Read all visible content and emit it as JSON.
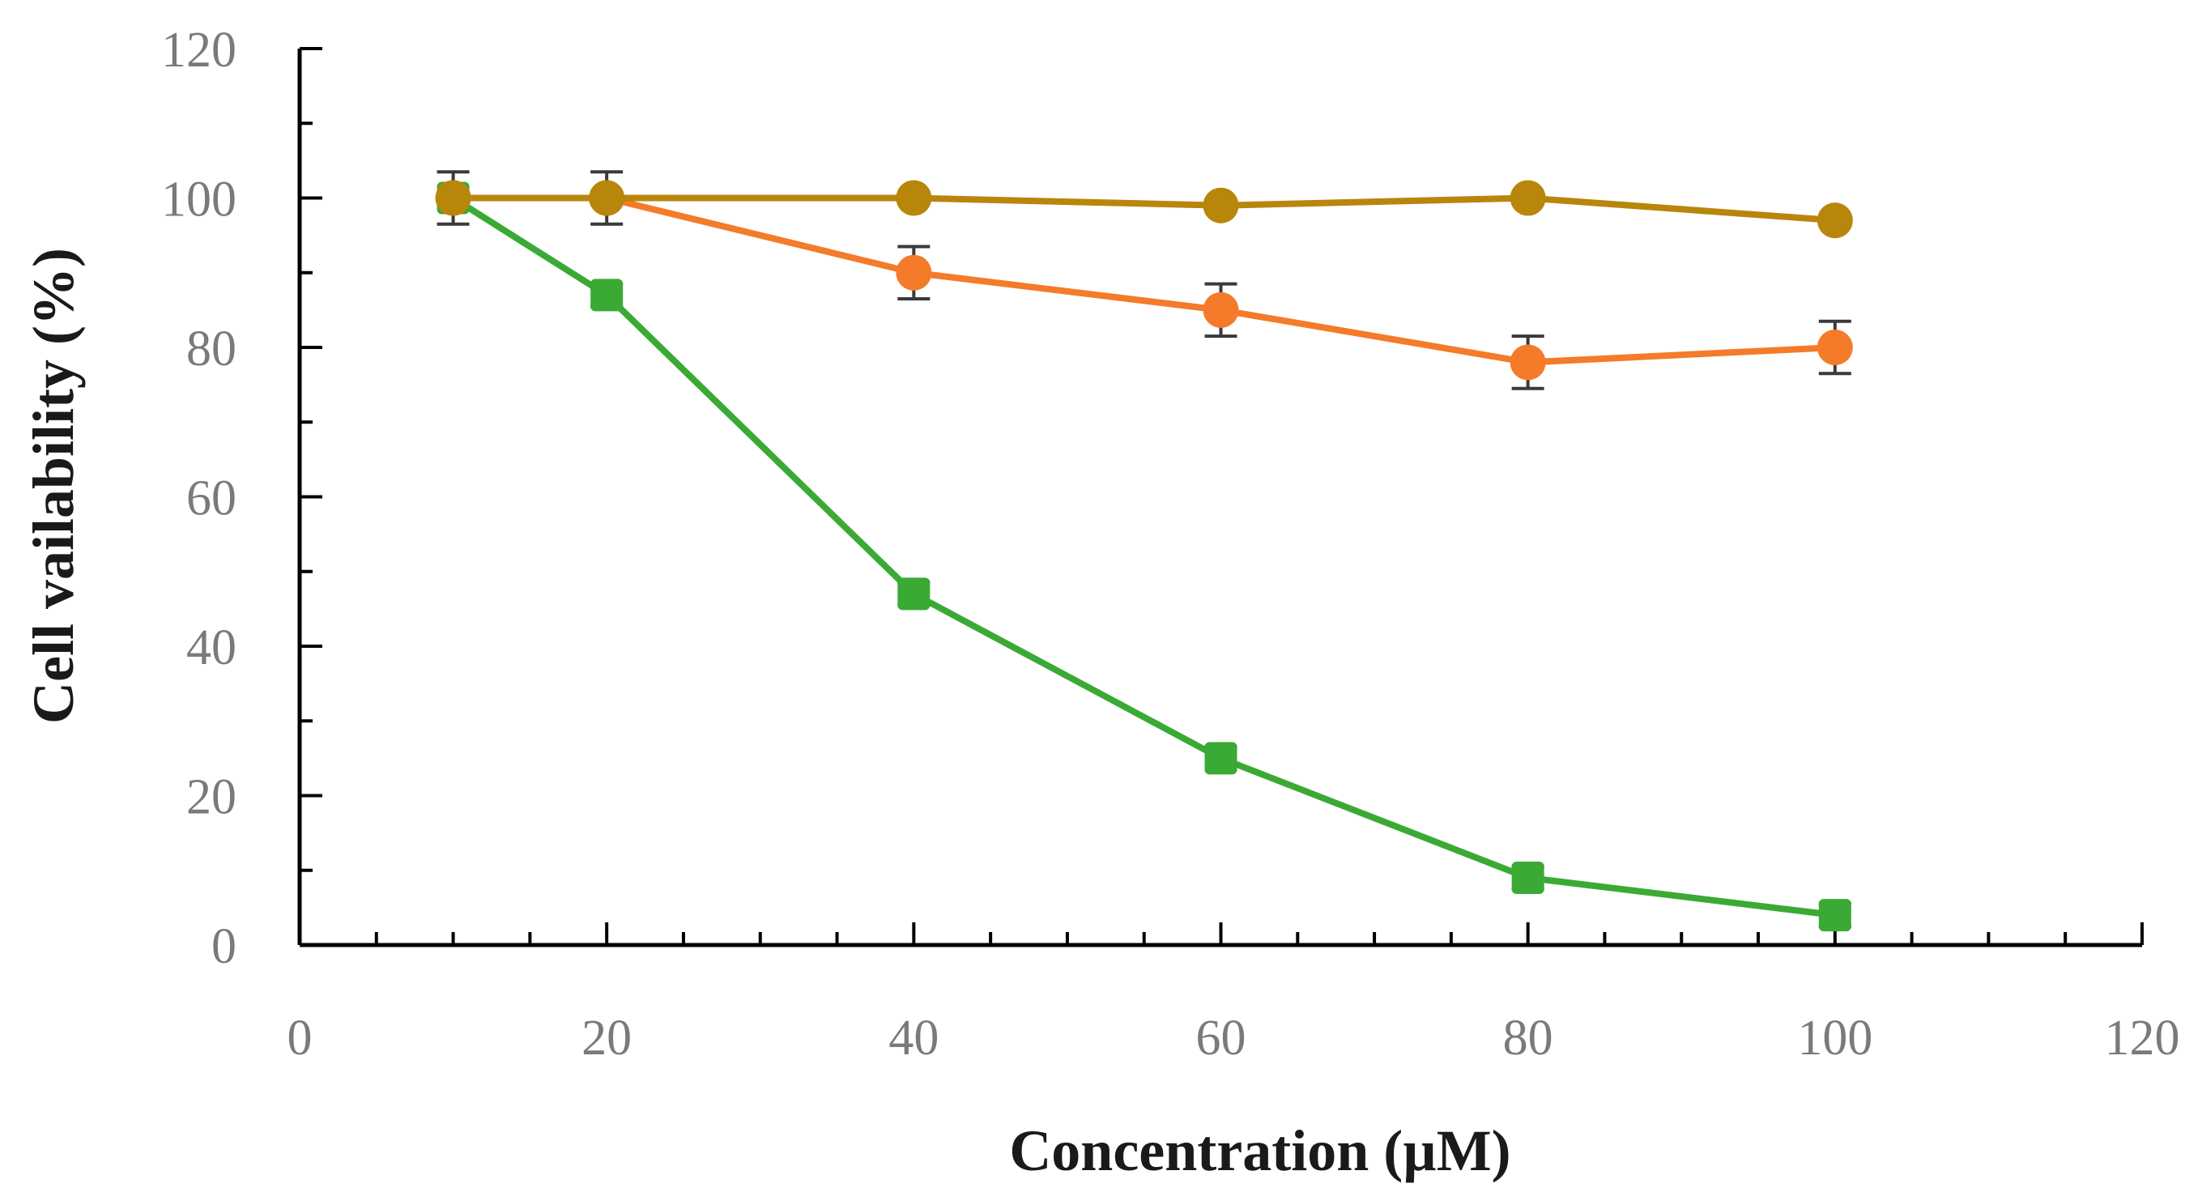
{
  "chart_data": {
    "type": "line",
    "title": "",
    "xlabel": "Concentration (µM)",
    "ylabel": "Cell  vailability (%)",
    "xlim": [
      0,
      120
    ],
    "ylim": [
      0,
      120
    ],
    "x_ticks": [
      0,
      20,
      40,
      60,
      80,
      100,
      120
    ],
    "y_ticks": [
      0,
      20,
      40,
      60,
      80,
      100,
      120
    ],
    "x": [
      10,
      20,
      40,
      60,
      80,
      100
    ],
    "series": [
      {
        "name": "green series",
        "color": "#3aaa35",
        "marker": "square",
        "values": [
          100,
          87,
          47,
          25,
          9,
          4
        ],
        "errors": [
          0,
          1.5,
          1.5,
          1.5,
          1.5,
          1.5
        ]
      },
      {
        "name": "orange series",
        "color": "#f47b2a",
        "marker": "circle",
        "values": [
          100,
          100,
          90,
          85,
          78,
          80
        ],
        "errors": [
          3.5,
          3.5,
          3.5,
          3.5,
          3.5,
          3.5
        ]
      },
      {
        "name": "brown series",
        "color": "#b8860b",
        "marker": "circle",
        "values": [
          100,
          100,
          100,
          99,
          100,
          97
        ],
        "errors": [
          0,
          0,
          0,
          0,
          0,
          0
        ]
      }
    ],
    "grid": false,
    "legend": "none"
  }
}
